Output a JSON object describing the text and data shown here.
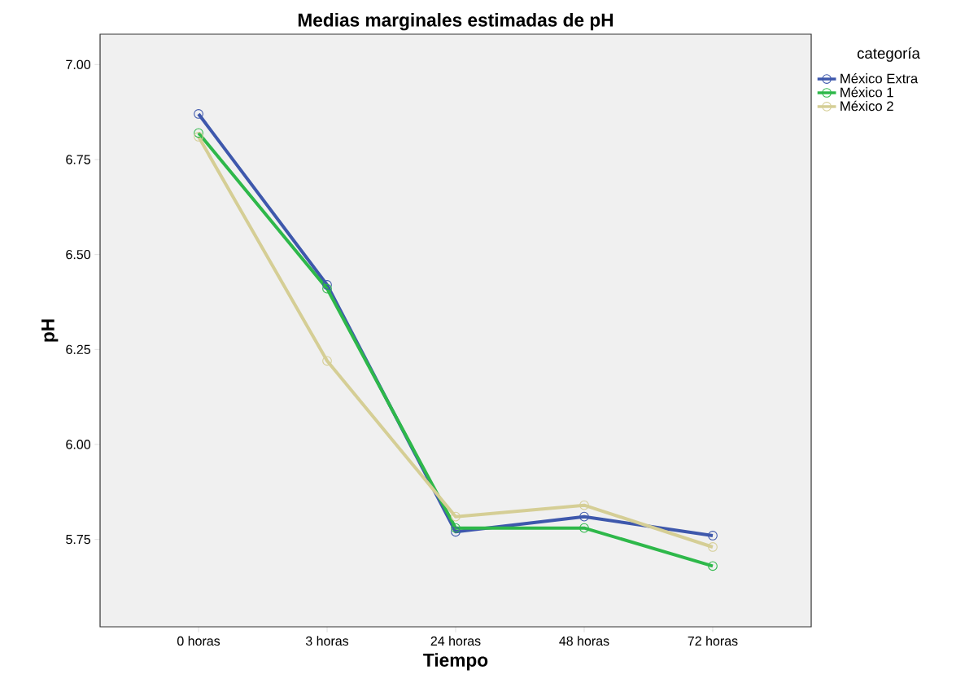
{
  "chart_data": {
    "type": "line",
    "title": "Medias marginales estimadas de pH",
    "xlabel": "Tiempo",
    "ylabel": "pH",
    "legend_title": "categoría",
    "categories": [
      "0 horas",
      "3 horas",
      "24 horas",
      "48 horas",
      "72 horas"
    ],
    "series": [
      {
        "name": "México Extra",
        "color": "#3e58ac",
        "values": [
          6.87,
          6.42,
          5.77,
          5.81,
          5.76
        ]
      },
      {
        "name": "México 1",
        "color": "#2eb84a",
        "values": [
          6.82,
          6.41,
          5.78,
          5.78,
          5.68
        ]
      },
      {
        "name": "México 2",
        "color": "#d5ce95",
        "values": [
          6.81,
          6.22,
          5.81,
          5.84,
          5.73
        ]
      }
    ],
    "ylim": [
      5.52,
      7.08
    ],
    "yticks": [
      {
        "value": 5.75,
        "label": "5.75"
      },
      {
        "value": 6.0,
        "label": "6.00"
      },
      {
        "value": 6.25,
        "label": "6.25"
      },
      {
        "value": 6.5,
        "label": "6.50"
      },
      {
        "value": 6.75,
        "label": "6.75"
      },
      {
        "value": 7.0,
        "label": "7.00"
      }
    ],
    "grid": false,
    "legend": "top right",
    "marker": "circle",
    "line_style": "solid"
  }
}
